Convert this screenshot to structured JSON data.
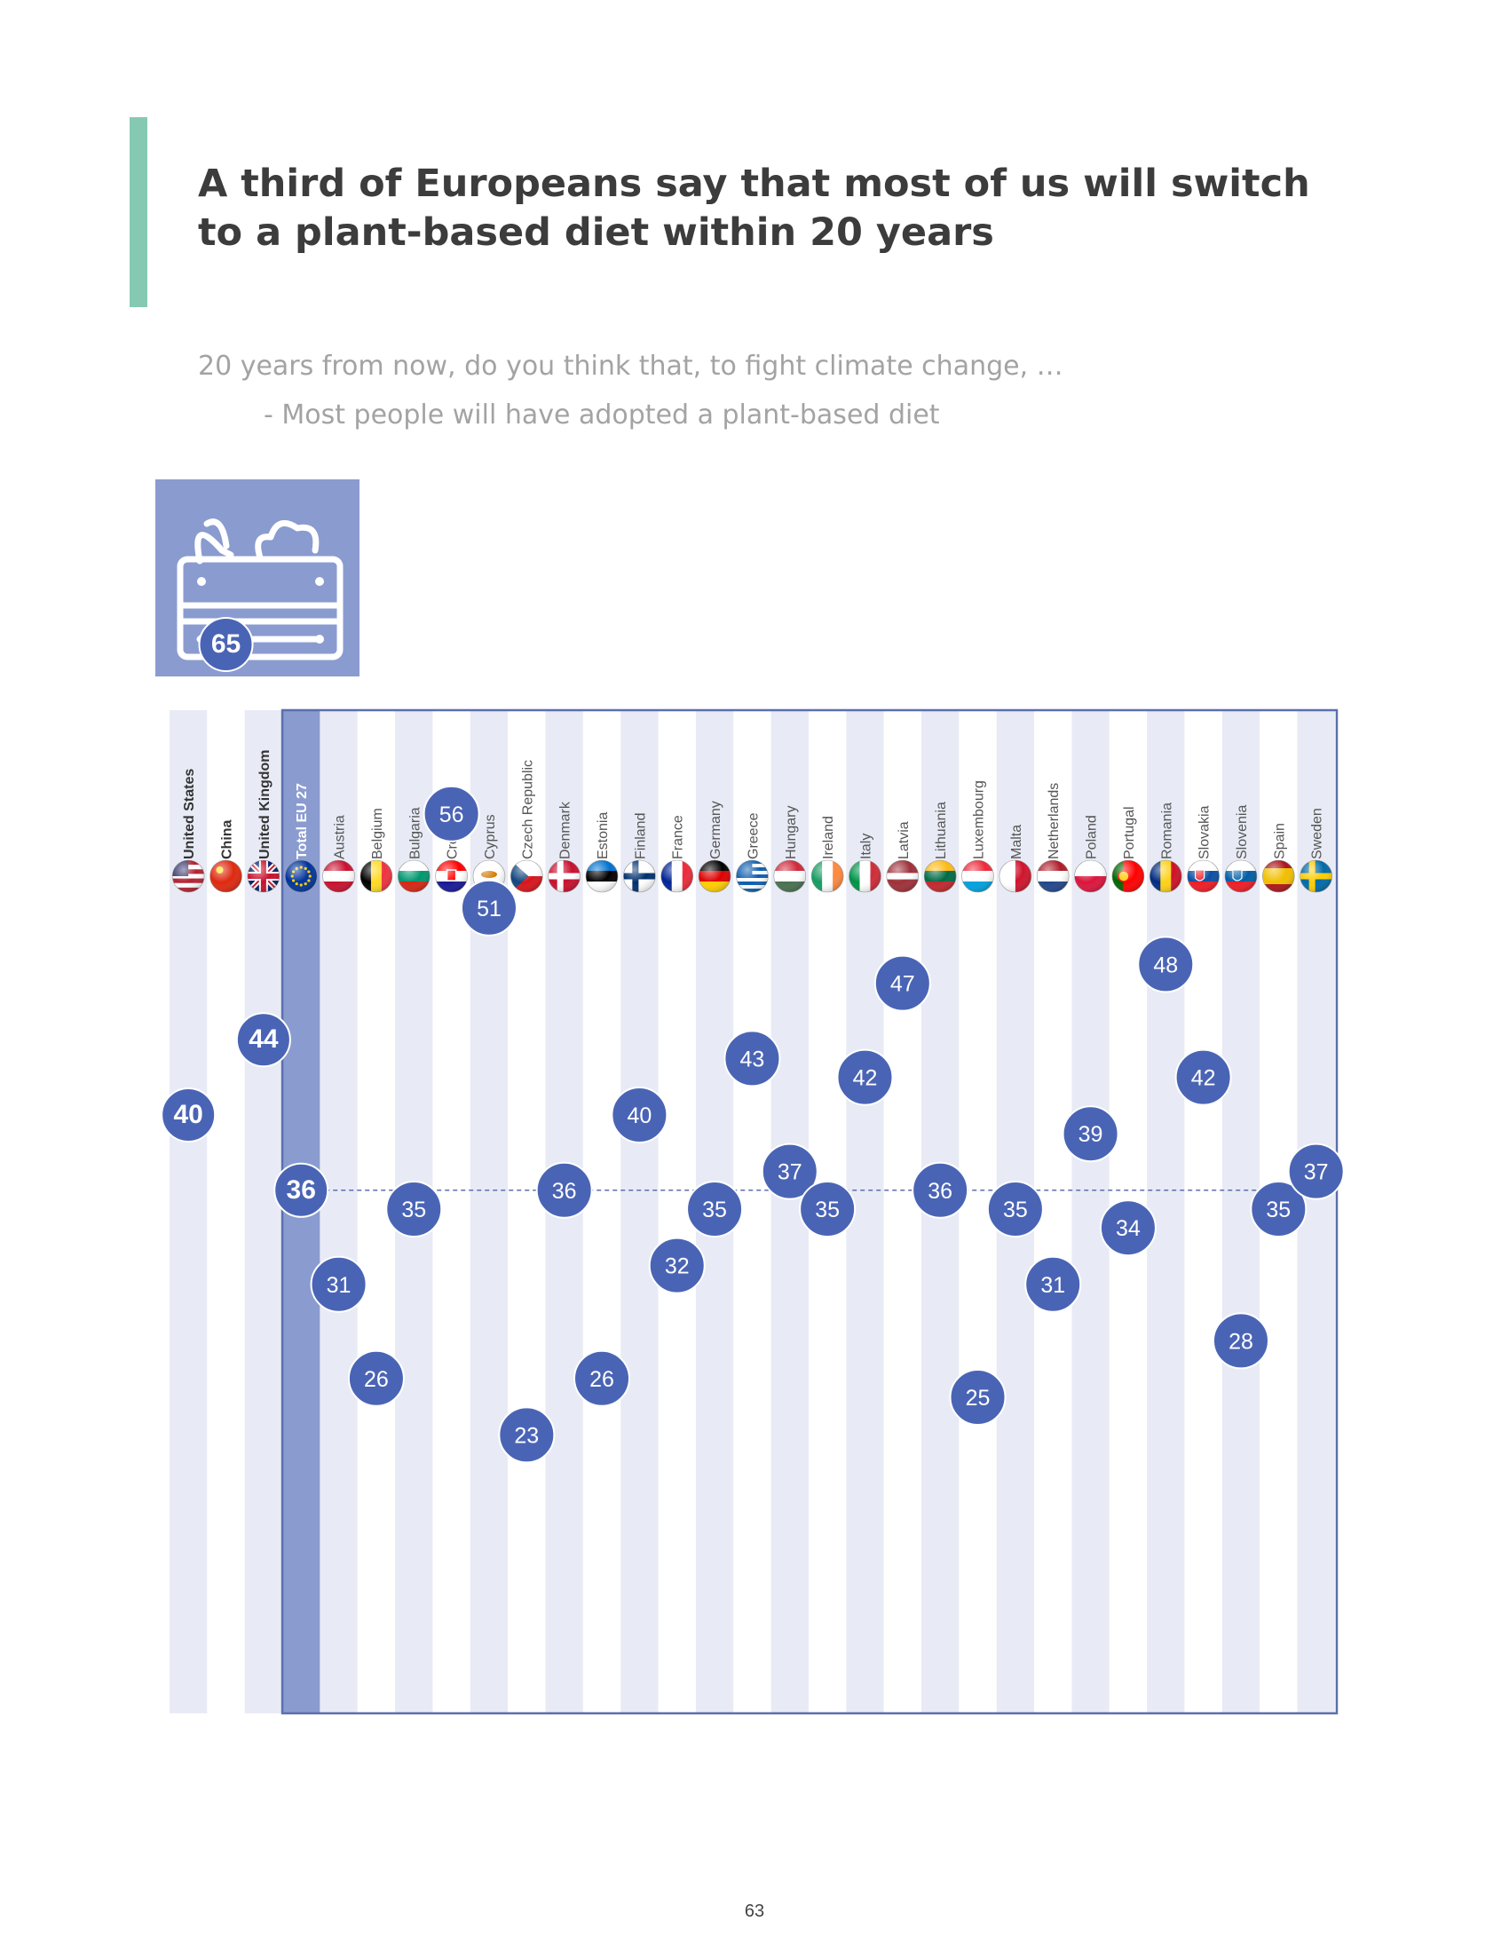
{
  "title": "A third of Europeans say that most of us will switch to a plant-based diet within 20 years",
  "question": "20 years from now, do you think that, to fight climate change, …",
  "sub_question": "- Most people will have adopted a plant-based diet",
  "page_number": "63",
  "icon": "plant-crate-icon",
  "colors": {
    "accent": "#85c9b3",
    "bubble": "#4a64b5",
    "highlight_column": "#8a9bcf",
    "stripe": "#e8ebf5",
    "frame": "#5b6fad"
  },
  "chart_data": {
    "type": "scatter",
    "ylim": [
      0,
      100
    ],
    "eu_average": 36,
    "categories": [
      "United States",
      "China",
      "United Kingdom",
      "Total EU 27",
      "Austria",
      "Belgium",
      "Bulgaria",
      "Croatia",
      "Cyprus",
      "Czech Republic",
      "Denmark",
      "Estonia",
      "Finland",
      "France",
      "Germany",
      "Greece",
      "Hungary",
      "Ireland",
      "Italy",
      "Latvia",
      "Lithuania",
      "Luxembourg",
      "Malta",
      "Netherlands",
      "Poland",
      "Portugal",
      "Romania",
      "Slovakia",
      "Slovenia",
      "Spain",
      "Sweden"
    ],
    "values": [
      40,
      65,
      44,
      36,
      31,
      26,
      35,
      56,
      51,
      23,
      36,
      26,
      40,
      32,
      35,
      43,
      37,
      35,
      42,
      47,
      36,
      25,
      35,
      31,
      39,
      34,
      48,
      42,
      28,
      35,
      37
    ],
    "flag_icons": [
      "us-flag-icon",
      "china-flag-icon",
      "uk-flag-icon",
      "eu-flag-icon",
      "austria-flag-icon",
      "belgium-flag-icon",
      "bulgaria-flag-icon",
      "croatia-flag-icon",
      "cyprus-flag-icon",
      "czech-republic-flag-icon",
      "denmark-flag-icon",
      "estonia-flag-icon",
      "finland-flag-icon",
      "france-flag-icon",
      "germany-flag-icon",
      "greece-flag-icon",
      "hungary-flag-icon",
      "ireland-flag-icon",
      "italy-flag-icon",
      "latvia-flag-icon",
      "lithuania-flag-icon",
      "luxembourg-flag-icon",
      "malta-flag-icon",
      "netherlands-flag-icon",
      "poland-flag-icon",
      "portugal-flag-icon",
      "romania-flag-icon",
      "slovakia-flag-icon",
      "slovenia-flag-icon",
      "spain-flag-icon",
      "sweden-flag-icon"
    ],
    "bold_categories": [
      "United States",
      "China",
      "United Kingdom",
      "Total EU 27"
    ]
  }
}
